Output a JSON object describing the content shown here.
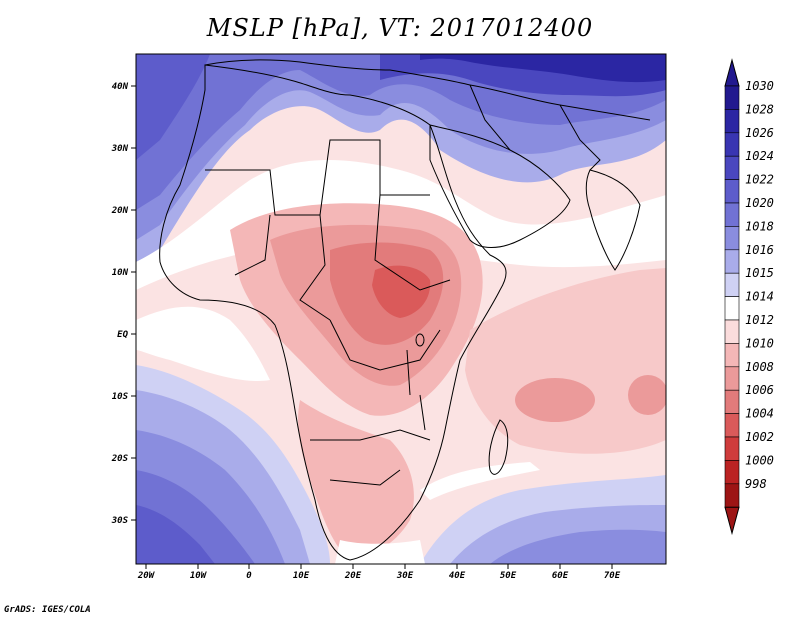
{
  "title": "MSLP [hPa], VT: 2017012400",
  "footer": "GrADS: IGES/COLA",
  "axes": {
    "x_ticks": [
      "20W",
      "10W",
      "0",
      "10E",
      "20E",
      "30E",
      "40E",
      "50E",
      "60E",
      "70E"
    ],
    "y_ticks": [
      "40N",
      "30N",
      "20N",
      "10N",
      "EQ",
      "10S",
      "20S",
      "30S"
    ]
  },
  "colorbar": {
    "levels": [
      "1030",
      "1028",
      "1026",
      "1024",
      "1022",
      "1020",
      "1018",
      "1016",
      "1015",
      "1014",
      "1012",
      "1010",
      "1008",
      "1006",
      "1004",
      "1002",
      "1000",
      "998"
    ],
    "colors": [
      "#22198f",
      "#2b26a3",
      "#3935b2",
      "#4a47bf",
      "#5d5ccb",
      "#7172d4",
      "#8a8ddf",
      "#a9acea",
      "#cfd1f4",
      "#ffffff",
      "#fbdcdc",
      "#f4b7b7",
      "#eb9a9a",
      "#e27b7b",
      "#da5a5a",
      "#cf3c3c",
      "#bb2323",
      "#9d1515"
    ]
  }
}
